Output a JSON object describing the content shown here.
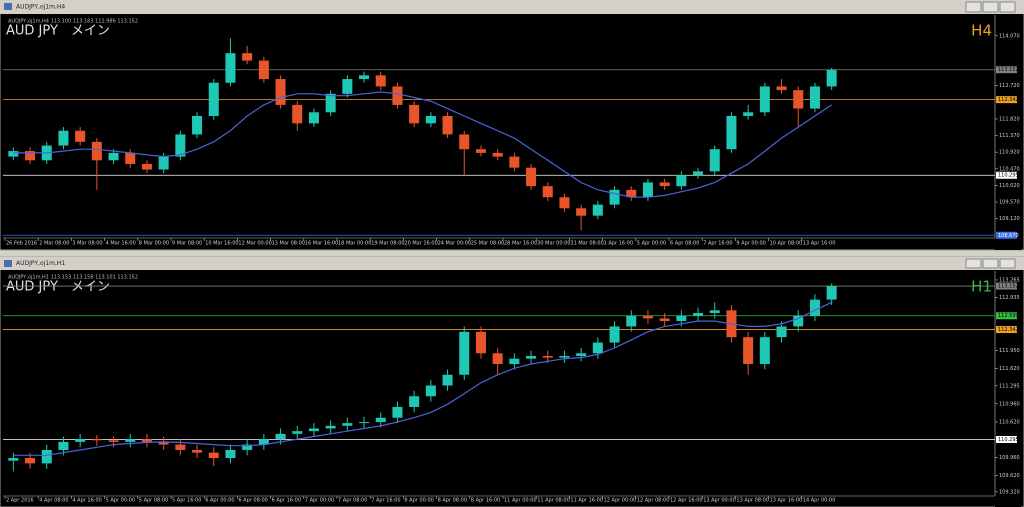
{
  "chart_data": [
    {
      "type": "candlestick",
      "window_title": "AUDJPY,oj1m,H4",
      "header": "AUDJPY,oj1m,H4 113.100 113.183 112.986 113.152",
      "label": "AUD JPY　メイン",
      "timeframe": "H4",
      "timeframe_color": "#e8a020",
      "up_color": "#1fc8b4",
      "down_color": "#e8552a",
      "ma_color": "#4a63e0",
      "ylim": [
        108.65,
        114.58
      ],
      "yticks": [
        {
          "value": 114.07,
          "label": "114.070"
        },
        {
          "value": 112.72,
          "label": "112.720"
        },
        {
          "value": 111.82,
          "label": "111.820"
        },
        {
          "value": 111.37,
          "label": "111.370"
        },
        {
          "value": 110.92,
          "label": "110.920"
        },
        {
          "value": 110.47,
          "label": "110.470"
        },
        {
          "value": 110.02,
          "label": "110.020"
        },
        {
          "value": 109.57,
          "label": "109.570"
        },
        {
          "value": 109.12,
          "label": "109.120"
        }
      ],
      "levels": [
        {
          "value": 113.152,
          "color": "#808080"
        },
        {
          "value": 112.342,
          "color": "#e8a020"
        },
        {
          "value": 110.295,
          "color": "#ffffff"
        },
        {
          "value": {
            "value": 108.67,
            "label": "108.670"
          },
          "color": "#3a6fe8"
        }
      ],
      "xlabels": [
        "26 Feb 2016",
        "2 Mar 08:00",
        "3 Mar 08:00",
        "4 Mar 16:00",
        "8 Mar 00:00",
        "9 Mar 08:00",
        "10 Mar 16:00",
        "12 Mar 00:00",
        "13 Mar 08:00",
        "16 Mar 16:00",
        "18 Mar 00:00",
        "19 Mar 08:00",
        "20 Mar 16:00",
        "24 Mar 00:00",
        "25 Mar 08:00",
        "28 Mar 16:00",
        "30 Mar 00:00",
        "31 Mar 08:00",
        "1 Apr 16:00",
        "5 Apr 00:00",
        "6 Apr 08:00",
        "7 Apr 16:00",
        "9 Apr 00:00",
        "10 Apr 08:00",
        "13 Apr 16:00"
      ],
      "candles": [
        [
          110.8,
          111.05,
          110.7,
          110.95
        ],
        [
          110.95,
          111.05,
          110.6,
          110.7
        ],
        [
          110.7,
          111.2,
          110.6,
          111.1
        ],
        [
          111.1,
          111.6,
          111.0,
          111.5
        ],
        [
          111.5,
          111.6,
          111.1,
          111.2
        ],
        [
          111.2,
          111.3,
          109.9,
          110.7
        ],
        [
          110.7,
          111.0,
          110.6,
          110.9
        ],
        [
          110.9,
          111.0,
          110.5,
          110.6
        ],
        [
          110.6,
          110.7,
          110.35,
          110.45
        ],
        [
          110.45,
          110.9,
          110.35,
          110.8
        ],
        [
          110.8,
          111.5,
          110.7,
          111.4
        ],
        [
          111.4,
          112.0,
          111.3,
          111.9
        ],
        [
          111.9,
          112.9,
          111.8,
          112.8
        ],
        [
          112.8,
          114.0,
          112.7,
          113.6
        ],
        [
          113.6,
          113.8,
          113.3,
          113.4
        ],
        [
          113.4,
          113.5,
          112.8,
          112.9
        ],
        [
          112.9,
          113.0,
          112.1,
          112.2
        ],
        [
          112.2,
          112.3,
          111.5,
          111.7
        ],
        [
          111.7,
          112.1,
          111.6,
          112.0
        ],
        [
          112.0,
          112.6,
          111.9,
          112.5
        ],
        [
          112.5,
          113.0,
          112.4,
          112.9
        ],
        [
          112.9,
          113.1,
          112.8,
          113.0
        ],
        [
          113.0,
          113.1,
          112.6,
          112.7
        ],
        [
          112.7,
          112.8,
          112.1,
          112.2
        ],
        [
          112.2,
          112.3,
          111.6,
          111.7
        ],
        [
          111.7,
          112.0,
          111.6,
          111.9
        ],
        [
          111.9,
          112.0,
          111.3,
          111.4
        ],
        [
          111.4,
          111.5,
          110.3,
          111.0
        ],
        [
          111.0,
          111.1,
          110.8,
          110.9
        ],
        [
          110.9,
          111.0,
          110.7,
          110.8
        ],
        [
          110.8,
          110.9,
          110.4,
          110.5
        ],
        [
          110.5,
          110.6,
          109.9,
          110.0
        ],
        [
          110.0,
          110.1,
          109.6,
          109.7
        ],
        [
          109.7,
          109.8,
          109.3,
          109.4
        ],
        [
          109.4,
          109.5,
          108.8,
          109.2
        ],
        [
          109.2,
          109.6,
          109.1,
          109.5
        ],
        [
          109.5,
          110.0,
          109.4,
          109.9
        ],
        [
          109.9,
          110.0,
          109.6,
          109.7
        ],
        [
          109.7,
          110.2,
          109.6,
          110.1
        ],
        [
          110.1,
          110.2,
          109.9,
          110.0
        ],
        [
          110.0,
          110.4,
          109.9,
          110.3
        ],
        [
          110.3,
          110.5,
          110.2,
          110.4
        ],
        [
          110.4,
          111.1,
          110.3,
          111.0
        ],
        [
          111.0,
          112.0,
          110.9,
          111.9
        ],
        [
          111.9,
          112.2,
          111.8,
          112.0
        ],
        [
          112.0,
          112.8,
          111.9,
          112.7
        ],
        [
          112.7,
          112.9,
          112.5,
          112.6
        ],
        [
          112.6,
          112.7,
          111.6,
          112.1
        ],
        [
          112.1,
          112.8,
          112.0,
          112.7
        ],
        [
          112.7,
          113.2,
          112.6,
          113.15
        ]
      ],
      "ma": [
        110.9,
        110.9,
        110.9,
        110.95,
        111.0,
        111.0,
        110.95,
        110.9,
        110.85,
        110.8,
        110.85,
        111.0,
        111.2,
        111.5,
        111.9,
        112.2,
        112.4,
        112.5,
        112.5,
        112.45,
        112.45,
        112.5,
        112.55,
        112.5,
        112.4,
        112.3,
        112.1,
        111.9,
        111.7,
        111.5,
        111.3,
        111.0,
        110.7,
        110.4,
        110.1,
        109.9,
        109.8,
        109.7,
        109.7,
        109.75,
        109.85,
        109.95,
        110.1,
        110.35,
        110.6,
        110.95,
        111.3,
        111.6,
        111.9,
        112.2
      ]
    },
    {
      "type": "candlestick",
      "window_title": "AUDJPY,oj1m,H1",
      "header": "AUDJPY,oj1m,H1 113.153 113.158 113.101 113.152",
      "label": "AUD JPY　メイン",
      "timeframe": "H1",
      "timeframe_color": "#2ec040",
      "up_color": "#1fc8b4",
      "down_color": "#e8552a",
      "ma_color": "#4a63e0",
      "ylim": [
        109.28,
        113.395
      ],
      "yticks": [
        113.265,
        112.935,
        {
          "value": 111.95,
          "label": "111.950"
        },
        {
          "value": 111.62,
          "label": "111.620"
        },
        111.295,
        {
          "value": 110.96,
          "label": "110.960"
        },
        {
          "value": 110.62,
          "label": "110.620"
        },
        {
          "value": 109.96,
          "label": "109.960"
        },
        {
          "value": 109.62,
          "label": "109.620"
        },
        {
          "value": 109.32,
          "label": "109.320"
        }
      ],
      "levels": [
        {
          "value": 113.152,
          "color": "#808080"
        },
        {
          "value": 112.599,
          "color": "#2ec040"
        },
        {
          "value": 112.342,
          "color": "#e8a020"
        },
        {
          "value": 110.295,
          "color": "#ffffff"
        }
      ],
      "xlabels": [
        "2 Apr 2016",
        "4 Apr 08:00",
        "4 Apr 16:00",
        "5 Apr 00:00",
        "5 Apr 08:00",
        "5 Apr 16:00",
        "6 Apr 00:00",
        "6 Apr 08:00",
        "6 Apr 16:00",
        "7 Apr 00:00",
        "7 Apr 08:00",
        "7 Apr 16:00",
        "8 Apr 00:00",
        "8 Apr 08:00",
        "8 Apr 16:00",
        "11 Apr 00:00",
        "11 Apr 08:00",
        "11 Apr 16:00",
        "12 Apr 00:00",
        "12 Apr 08:00",
        "12 Apr 16:00",
        "13 Apr 00:00",
        "13 Apr 08:00",
        "13 Apr 16:00",
        "14 Apr 00:00"
      ],
      "candles": [
        [
          109.9,
          110.05,
          109.7,
          109.95
        ],
        [
          109.95,
          110.05,
          109.75,
          109.85
        ],
        [
          109.85,
          110.2,
          109.75,
          110.1
        ],
        [
          110.1,
          110.35,
          110.0,
          110.25
        ],
        [
          110.25,
          110.4,
          110.15,
          110.3
        ],
        [
          110.3,
          110.38,
          110.18,
          110.28
        ],
        [
          110.28,
          110.35,
          110.15,
          110.25
        ],
        [
          110.25,
          110.4,
          110.15,
          110.3
        ],
        [
          110.3,
          110.4,
          110.15,
          110.25
        ],
        [
          110.25,
          110.35,
          110.1,
          110.2
        ],
        [
          110.2,
          110.3,
          110.0,
          110.1
        ],
        [
          110.1,
          110.2,
          109.95,
          110.05
        ],
        [
          110.05,
          110.15,
          109.8,
          109.95
        ],
        [
          109.95,
          110.2,
          109.85,
          110.1
        ],
        [
          110.1,
          110.3,
          110.0,
          110.2
        ],
        [
          110.2,
          110.4,
          110.1,
          110.3
        ],
        [
          110.3,
          110.5,
          110.2,
          110.4
        ],
        [
          110.4,
          110.55,
          110.3,
          110.45
        ],
        [
          110.45,
          110.6,
          110.35,
          110.5
        ],
        [
          110.5,
          110.65,
          110.4,
          110.55
        ],
        [
          110.55,
          110.7,
          110.45,
          110.6
        ],
        [
          110.6,
          110.72,
          110.5,
          110.62
        ],
        [
          110.62,
          110.8,
          110.52,
          110.7
        ],
        [
          110.7,
          111.0,
          110.6,
          110.9
        ],
        [
          110.9,
          111.2,
          110.8,
          111.1
        ],
        [
          111.1,
          111.4,
          111.0,
          111.3
        ],
        [
          111.3,
          111.6,
          111.2,
          111.5
        ],
        [
          111.5,
          112.4,
          111.4,
          112.3
        ],
        [
          112.3,
          112.4,
          111.8,
          111.9
        ],
        [
          111.9,
          112.0,
          111.5,
          111.7
        ],
        [
          111.7,
          111.9,
          111.6,
          111.8
        ],
        [
          111.8,
          111.95,
          111.7,
          111.85
        ],
        [
          111.85,
          111.95,
          111.72,
          111.82
        ],
        [
          111.82,
          111.95,
          111.72,
          111.85
        ],
        [
          111.85,
          112.0,
          111.75,
          111.9
        ],
        [
          111.9,
          112.2,
          111.8,
          112.1
        ],
        [
          112.1,
          112.5,
          112.0,
          112.4
        ],
        [
          112.4,
          112.7,
          112.3,
          112.6
        ],
        [
          112.6,
          112.7,
          112.45,
          112.55
        ],
        [
          112.55,
          112.65,
          112.4,
          112.5
        ],
        [
          112.5,
          112.7,
          112.4,
          112.6
        ],
        [
          112.6,
          112.75,
          112.5,
          112.65
        ],
        [
          112.65,
          112.85,
          112.55,
          112.7
        ],
        [
          112.7,
          112.8,
          112.1,
          112.2
        ],
        [
          112.2,
          112.3,
          111.5,
          111.7
        ],
        [
          111.7,
          112.3,
          111.6,
          112.2
        ],
        [
          112.2,
          112.5,
          112.1,
          112.4
        ],
        [
          112.4,
          112.7,
          112.3,
          112.6
        ],
        [
          112.6,
          113.0,
          112.5,
          112.9
        ],
        [
          112.9,
          113.2,
          112.8,
          113.15
        ]
      ],
      "ma": [
        110.0,
        110.0,
        110.0,
        110.05,
        110.1,
        110.15,
        110.2,
        110.22,
        110.24,
        110.25,
        110.24,
        110.22,
        110.2,
        110.18,
        110.18,
        110.2,
        110.25,
        110.3,
        110.35,
        110.4,
        110.45,
        110.5,
        110.55,
        110.62,
        110.7,
        110.8,
        110.95,
        111.15,
        111.35,
        111.5,
        111.62,
        111.7,
        111.75,
        111.8,
        111.82,
        111.88,
        112.0,
        112.15,
        112.3,
        112.4,
        112.45,
        112.5,
        112.5,
        112.45,
        112.4,
        112.4,
        112.45,
        112.55,
        112.7,
        112.85
      ]
    }
  ]
}
